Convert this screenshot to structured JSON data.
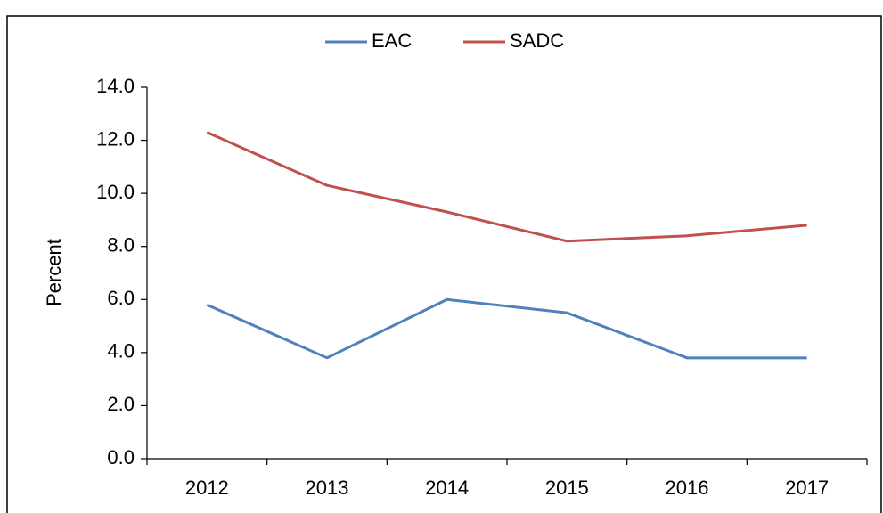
{
  "chart_data": {
    "type": "line",
    "y_label": "Percent",
    "categories": [
      "2012",
      "2013",
      "2014",
      "2015",
      "2016",
      "2017"
    ],
    "series": [
      {
        "name": "EAC",
        "color": "#4f81bd",
        "values": [
          5.8,
          3.8,
          6.0,
          5.5,
          3.8,
          3.8
        ]
      },
      {
        "name": "SADC",
        "color": "#c0504d",
        "values": [
          12.3,
          10.3,
          9.3,
          8.2,
          8.4,
          8.8
        ]
      }
    ],
    "ylim": [
      0,
      14
    ],
    "yticks": [
      {
        "value": 0,
        "label": "0.0"
      },
      {
        "value": 2,
        "label": "2.0"
      },
      {
        "value": 4,
        "label": "4.0"
      },
      {
        "value": 6,
        "label": "6.0"
      },
      {
        "value": 8,
        "label": "8.0"
      },
      {
        "value": 10,
        "label": "10.0"
      },
      {
        "value": 12,
        "label": "12.0"
      },
      {
        "value": 14,
        "label": "14.0"
      }
    ],
    "legend": "top"
  }
}
